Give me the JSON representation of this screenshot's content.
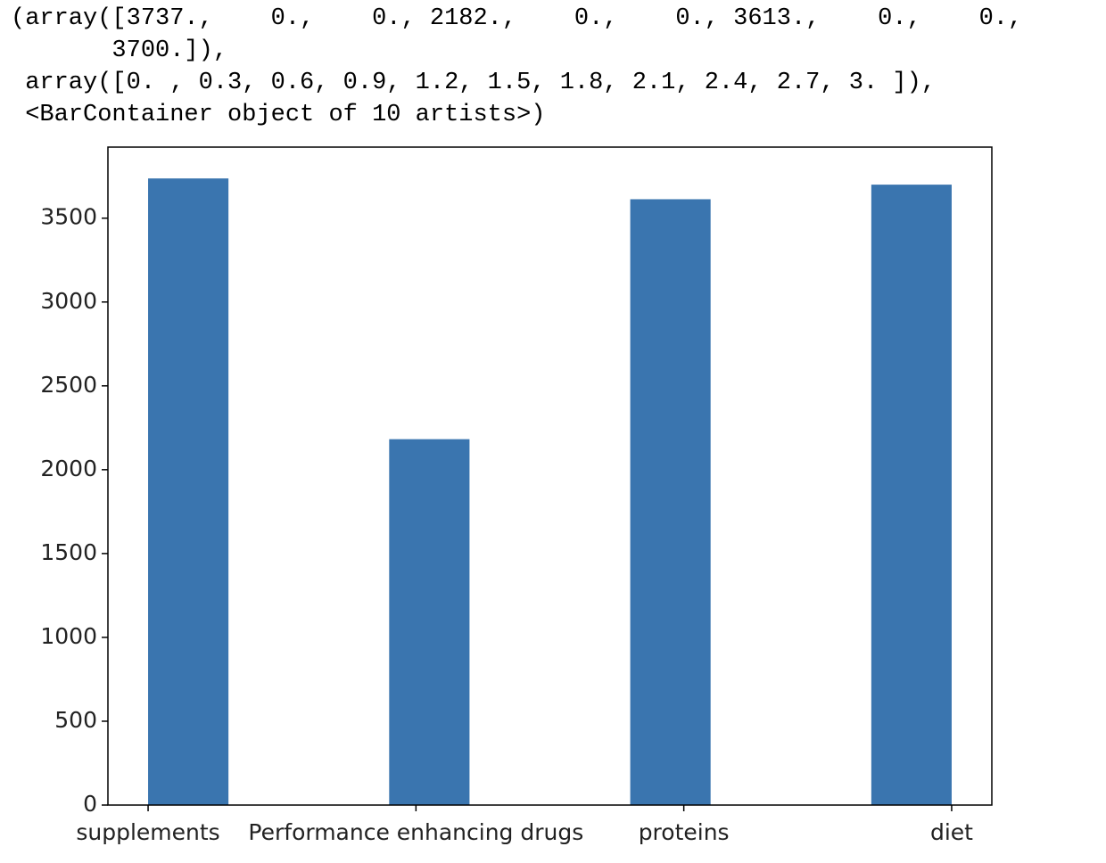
{
  "output_lines": [
    "(array([3737.,    0.,    0., 2182.,    0.,    0., 3613.,    0.,    0.,",
    "       3700.]),",
    " array([0. , 0.3, 0.6, 0.9, 1.2, 1.5, 1.8, 2.1, 2.4, 2.7, 3. ]),",
    " <BarContainer object of 10 artists>)"
  ],
  "chart_data": {
    "type": "histogram",
    "bins": [
      0,
      0.3,
      0.6,
      0.9,
      1.2,
      1.5,
      1.8,
      2.1,
      2.4,
      2.7,
      3
    ],
    "values": [
      3737,
      0,
      0,
      2182,
      0,
      0,
      3613,
      0,
      0,
      3700
    ],
    "color": "#3a75af",
    "xlim": [
      -0.15,
      3.15
    ],
    "xticks": [
      {
        "value": 0,
        "label": "supplements"
      },
      {
        "value": 1,
        "label": "Performance enhancing drugs"
      },
      {
        "value": 2,
        "label": "proteins"
      },
      {
        "value": 3,
        "label": "diet"
      }
    ],
    "ylim": [
      0,
      3923.85
    ],
    "yticks": [
      0,
      500,
      1000,
      1500,
      2000,
      2500,
      3000,
      3500
    ],
    "grid": false
  }
}
